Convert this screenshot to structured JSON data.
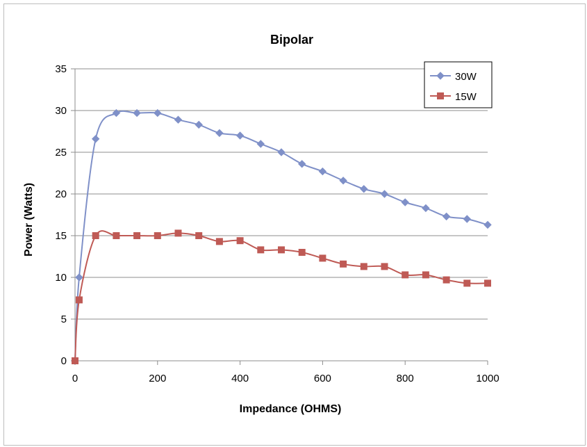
{
  "chart_data": {
    "type": "line",
    "title": "Bipolar",
    "xlabel": "Impedance (OHMS)",
    "ylabel": "Power (Watts)",
    "xlim": [
      0,
      1000
    ],
    "ylim": [
      0,
      35
    ],
    "xticks": [
      0,
      200,
      400,
      600,
      800,
      1000
    ],
    "yticks": [
      0,
      5,
      10,
      15,
      20,
      25,
      30,
      35
    ],
    "grid": "horizontal",
    "legend_position": "top-right",
    "series": [
      {
        "name": "30W",
        "color": "#7f90c8",
        "marker": "diamond",
        "x": [
          0,
          10,
          50,
          100,
          150,
          200,
          250,
          300,
          350,
          400,
          450,
          500,
          550,
          600,
          650,
          700,
          750,
          800,
          850,
          900,
          950,
          1000
        ],
        "y": [
          0,
          10,
          26.6,
          29.7,
          29.7,
          29.7,
          28.9,
          28.3,
          27.3,
          27.0,
          26.0,
          25.0,
          23.6,
          22.7,
          21.6,
          20.6,
          20.0,
          19.0,
          18.3,
          17.3,
          17.0,
          16.3
        ]
      },
      {
        "name": "15W",
        "color": "#bf5a55",
        "marker": "square",
        "x": [
          0,
          10,
          50,
          100,
          150,
          200,
          250,
          300,
          350,
          400,
          450,
          500,
          550,
          600,
          650,
          700,
          750,
          800,
          850,
          900,
          950,
          1000
        ],
        "y": [
          0,
          7.3,
          15.0,
          15.0,
          15.0,
          15.0,
          15.3,
          15.0,
          14.3,
          14.4,
          13.3,
          13.3,
          13.0,
          12.3,
          11.6,
          11.3,
          11.3,
          10.3,
          10.3,
          9.7,
          9.3,
          9.3
        ]
      }
    ]
  }
}
